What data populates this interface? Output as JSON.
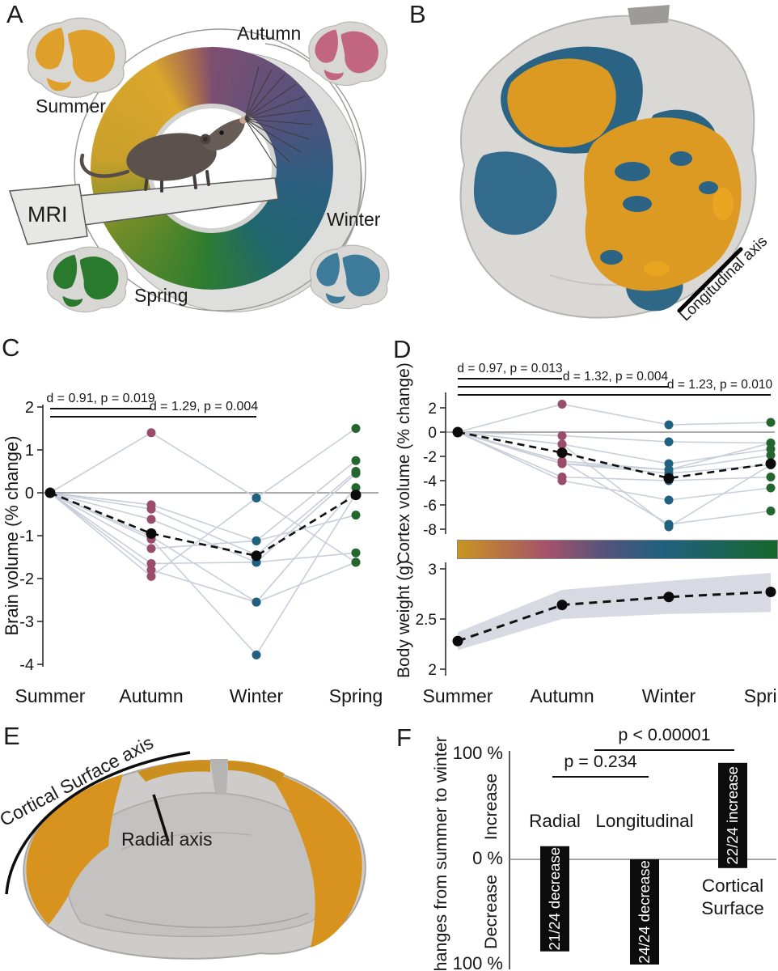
{
  "panels": {
    "a": "A",
    "b": "B",
    "c": "C",
    "d": "D",
    "e": "E",
    "f": "F"
  },
  "panel_a": {
    "labels": {
      "summer": "Summer",
      "autumn": "Autumn",
      "winter": "Winter",
      "spring": "Spring",
      "mri": "MRI"
    },
    "wheel_colors": [
      "#DAA72B",
      "#7E4E72",
      "#2B5F80",
      "#2F7D2F"
    ]
  },
  "panel_b": {
    "axis_label": "Longitudinal axis",
    "orange": "#DC9A22",
    "blue": "#2A6384",
    "gray": "#D9D8D5"
  },
  "panel_e": {
    "surface_label": "Cortical Surface axis",
    "radial_label": "Radial axis",
    "cortex_orange": "#D8921E"
  },
  "colors": {
    "dot_autumn": "#9A4D68",
    "dot_winter": "#20617F",
    "dot_spring": "#24662E",
    "mean_black": "#0B0B0B",
    "subject_line": "#C8CEDA",
    "band_gray": "#D7DAE3",
    "zero_line": "#8F8F8F",
    "season_gradient": [
      "#C8951F",
      "#A5526B",
      "#54537A",
      "#21607F",
      "#1C6458",
      "#15662B"
    ]
  },
  "chart_data": [
    {
      "id": "brain_volume",
      "panel": "C",
      "type": "line",
      "ylabel": "Brain volume (% change)",
      "categories": [
        "Summer",
        "Autumn",
        "Winter",
        "Spring"
      ],
      "yticks": [
        2,
        1,
        0,
        -1,
        -2,
        -3,
        -4
      ],
      "ylim": [
        -4.3,
        2.2
      ],
      "grid": false,
      "legend": "none",
      "mean": [
        0,
        -0.95,
        -1.47,
        -0.05
      ],
      "subjects": [
        [
          0,
          1.4,
          -0.12,
          1.5
        ],
        [
          0,
          -0.28,
          -1.12,
          0.75
        ],
        [
          0,
          -0.38,
          -1.45,
          0.5
        ],
        [
          0,
          -0.62,
          -1.62,
          0.45
        ],
        [
          0,
          -1.02,
          -2.55,
          0.12
        ],
        [
          0,
          -1.08,
          -3.78,
          -0.02
        ],
        [
          0,
          -1.3,
          -1.12,
          -0.52
        ],
        [
          0,
          -1.65,
          -1.62,
          -1.4
        ],
        [
          0,
          -1.8,
          -2.55,
          -1.62
        ],
        [
          0,
          -1.95,
          -0.12,
          -1.62
        ]
      ],
      "dot_colors": [
        "#0B0B0B",
        "#9A4D68",
        "#20617F",
        "#24662E"
      ],
      "stats": [
        {
          "label": "d = 0.91, p = 0.019",
          "from": 0,
          "to": 1
        },
        {
          "label": "d = 1.29, p = 0.004",
          "from": 0,
          "to": 2
        }
      ]
    },
    {
      "id": "cortex_volume",
      "panel": "D-top",
      "type": "line",
      "ylabel": "Cortex volume (% change)",
      "categories": [
        "Summer",
        "Autumn",
        "Winter",
        "Spring"
      ],
      "yticks": [
        2,
        0,
        -2,
        -4,
        -6,
        -8
      ],
      "ylim": [
        -8.8,
        3.0
      ],
      "grid": false,
      "legend": "none",
      "mean": [
        0,
        -1.7,
        -3.8,
        -2.6
      ],
      "subjects": [
        [
          0,
          2.3,
          0.6,
          0.8
        ],
        [
          0,
          -0.3,
          -0.8,
          -0.9
        ],
        [
          0,
          -1.0,
          -2.6,
          -1.4
        ],
        [
          0,
          -2.4,
          -3.1,
          -1.9
        ],
        [
          0,
          -2.6,
          -3.4,
          -2.7
        ],
        [
          0,
          -3.7,
          -4.0,
          -3.7
        ],
        [
          0,
          -4.0,
          -5.6,
          -4.6
        ],
        [
          0,
          -2.4,
          -7.6,
          -6.5
        ],
        [
          0,
          -1.0,
          -7.8,
          -2.7
        ],
        [
          0,
          -2.6,
          -3.1,
          -0.9
        ]
      ],
      "dot_colors": [
        "#0B0B0B",
        "#9A4D68",
        "#20617F",
        "#24662E"
      ],
      "stats": [
        {
          "label": "d = 0.97, p = 0.013",
          "from": 0,
          "to": 1
        },
        {
          "label": "d = 1.32, p = 0.004",
          "from": 0,
          "to": 2
        },
        {
          "label": "d = 1.23, p = 0.010",
          "from": 0,
          "to": 3
        }
      ]
    },
    {
      "id": "body_weight",
      "panel": "D-bottom",
      "type": "line",
      "ylabel": "Body weight (g)",
      "categories": [
        "Summer",
        "Autumn",
        "Winter",
        "Spring"
      ],
      "yticks": [
        3,
        2.5,
        2
      ],
      "ylim": [
        1.9,
        3.1
      ],
      "mean": [
        2.28,
        2.64,
        2.72,
        2.77
      ],
      "band_low": [
        2.19,
        2.5,
        2.55,
        2.57
      ],
      "band_high": [
        2.37,
        2.79,
        2.88,
        2.96
      ]
    },
    {
      "id": "direction_bars",
      "panel": "F",
      "type": "bar",
      "ylabel": "Changes from summer to winter",
      "axis_words": [
        "Increase",
        "Decrease"
      ],
      "yticks": [
        "100 %",
        "0 %",
        "100 %"
      ],
      "ylim": [
        -100,
        100
      ],
      "bars": [
        {
          "category": "Radial",
          "label": "21/24 decrease",
          "top_pct": 12.5,
          "bottom_pct": -87.5,
          "label_pos": "above"
        },
        {
          "category": "Longitudinal",
          "label": "24/24 decrease",
          "top_pct": 0,
          "bottom_pct": -100,
          "label_pos": "above"
        },
        {
          "category": "Cortical Surface",
          "label": "22/24 increase",
          "top_pct": 91.7,
          "bottom_pct": -8.3,
          "label_pos": "below"
        }
      ],
      "annotations": [
        {
          "text": "p = 0.234",
          "from": 0,
          "to": 1
        },
        {
          "text": "p < 0.00001",
          "from": 1,
          "to": 2
        }
      ]
    }
  ]
}
